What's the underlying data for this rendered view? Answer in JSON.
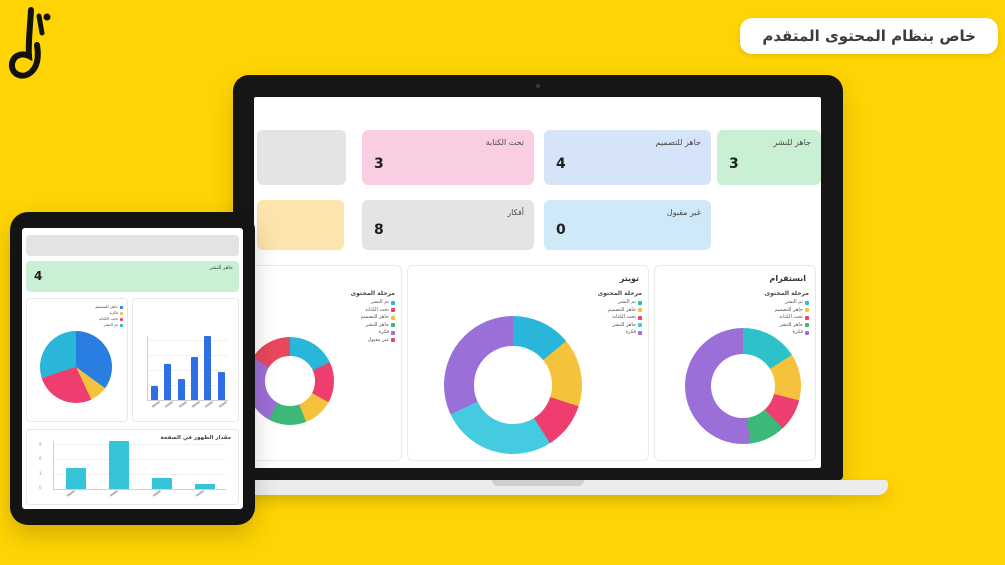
{
  "page": {
    "background_color": "#FFD404",
    "badge_label": "خاص بنظام المحتوى المتقدم",
    "logo_name": "arabic-calligraphy-logo"
  },
  "laptop": {
    "stat_cards": [
      {
        "label": "",
        "value": "",
        "color": "#e4e4e4"
      },
      {
        "label": "تحت الكتابة",
        "value": "3",
        "color": "#f9cde2"
      },
      {
        "label": "جاهز للتصميم",
        "value": "4",
        "color": "#d6e4f9"
      },
      {
        "label": "جاهز للنشر",
        "value": "3",
        "color": "#c9f0d3"
      },
      {
        "label": "",
        "value": "",
        "color": "#fce4ac"
      },
      {
        "label": "أفكار",
        "value": "8",
        "color": "#e4e4e4"
      },
      {
        "label": "غير مقبول",
        "value": "0",
        "color": "#d0e9f9"
      }
    ],
    "legend_title": "مرحلة المحتوى",
    "panels": [
      {
        "title": ""
      },
      {
        "title": "تويتر"
      },
      {
        "title": "انستقرام"
      }
    ]
  },
  "tablet": {
    "green_card": {
      "label": "جاهز للنشر",
      "value": "4",
      "color": "#c9f0d3"
    },
    "bottom_chart_title": "مقدار الظهور في الصفحة"
  },
  "chart_data": [
    {
      "id": "donut-a",
      "type": "pie",
      "variant": "donut",
      "title": "",
      "legend_title": "مرحلة المحتوى",
      "legend_position": "right",
      "segments": [
        {
          "label": "تم النشر",
          "color": "#29b6d8",
          "value": 18
        },
        {
          "label": "تحت الكتابة",
          "color": "#ee3d6f",
          "value": 15
        },
        {
          "label": "جاهز للتصميم",
          "color": "#f5c33b",
          "value": 11
        },
        {
          "label": "جاهز للنشر",
          "color": "#3cb878",
          "value": 14
        },
        {
          "label": "فكرة",
          "color": "#9b6fd8",
          "value": 26
        },
        {
          "label": "غير مقبول",
          "color": "#e8485c",
          "value": 16
        }
      ]
    },
    {
      "id": "donut-twitter",
      "type": "pie",
      "variant": "donut",
      "title": "تويتر",
      "legend_title": "مرحلة المحتوى",
      "legend_position": "right",
      "segments": [
        {
          "label": "تم النشر",
          "color": "#29b6d8",
          "value": 14
        },
        {
          "label": "جاهز للتصميم",
          "color": "#f5c33b",
          "value": 16
        },
        {
          "label": "تحت الكتابة",
          "color": "#ee3d6f",
          "value": 11
        },
        {
          "label": "جاهز للنشر",
          "color": "#45cbe0",
          "value": 27
        },
        {
          "label": "فكرة",
          "color": "#9b6fd8",
          "value": 32
        }
      ]
    },
    {
      "id": "donut-instagram",
      "type": "pie",
      "variant": "donut",
      "title": "انستقرام",
      "legend_title": "مرحلة المحتوى",
      "legend_position": "right",
      "segments": [
        {
          "label": "تم النشر",
          "color": "#2fc1c9",
          "value": 16
        },
        {
          "label": "جاهز للتصميم",
          "color": "#f5c33b",
          "value": 13
        },
        {
          "label": "تحت الكتابة",
          "color": "#ee3d6f",
          "value": 9
        },
        {
          "label": "جاهز للنشر",
          "color": "#3cb878",
          "value": 10
        },
        {
          "label": "فكرة",
          "color": "#9b6fd8",
          "value": 52
        }
      ]
    },
    {
      "id": "pie-tablet",
      "type": "pie",
      "variant": "pie",
      "title": "",
      "legend_position": "top-right",
      "segments": [
        {
          "label": "جاهز للتصميم",
          "color": "#2a7de1",
          "value": 35
        },
        {
          "label": "فكرة",
          "color": "#f5c33b",
          "value": 8
        },
        {
          "label": "تحت الكتابة",
          "color": "#ee3d6f",
          "value": 27
        },
        {
          "label": "تم النشر",
          "color": "#29b6d8",
          "value": 30
        }
      ]
    },
    {
      "id": "bars-blue",
      "type": "bar",
      "title": "",
      "categories": [
        "",
        "",
        "",
        "",
        "",
        ""
      ],
      "values": [
        2,
        5,
        3,
        6,
        9,
        4
      ],
      "ymax": 9,
      "bar_color": "#2f6fe4"
    },
    {
      "id": "bars-cyan",
      "type": "bar",
      "title": "مقدار الظهور في الصفحة",
      "categories": [
        "",
        "",
        "",
        ""
      ],
      "values": [
        4,
        9,
        2,
        1
      ],
      "ymax": 9,
      "yticks": [
        "9",
        "6",
        "3",
        "0"
      ],
      "bar_color": "#35c4d8"
    }
  ]
}
